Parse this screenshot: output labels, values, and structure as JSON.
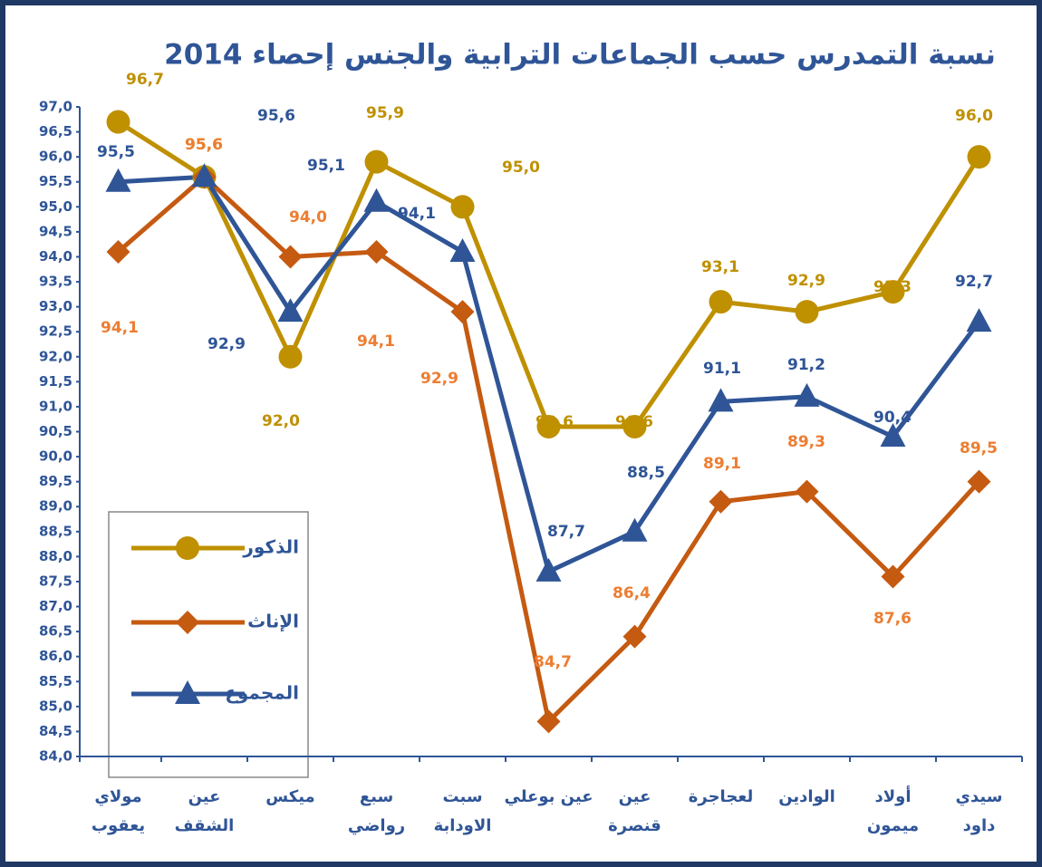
{
  "chart_data": {
    "type": "line",
    "title": "نسبة التمدرس حسب الجماعات الترابية والجنس إحصاء 2014",
    "categories": [
      "مولاي\nيعقوب",
      "عين\nالشقف",
      "ميكس",
      "سبع\nرواضي",
      "سبت\nالاودابة",
      "عين بوعلي",
      "عين\nقنصرة",
      "لعجاجرة",
      "الوادين",
      "أولاد\nميمون",
      "سيدي\nداود"
    ],
    "series": [
      {
        "name": "الذكور",
        "color": "#bf9000",
        "marker": "circle",
        "values": [
          96.7,
          95.6,
          92.0,
          95.9,
          95.0,
          90.6,
          90.6,
          93.1,
          92.9,
          93.3,
          96.0
        ],
        "value_labels": [
          "96,7",
          "95,6",
          "92,0",
          "95,9",
          "95,0",
          "90,6",
          "90,6",
          "93,1",
          "92,9",
          "93,3",
          "96,0"
        ]
      },
      {
        "name": "الإناث",
        "color": "#c55a11",
        "marker": "diamond",
        "values": [
          94.1,
          95.6,
          94.0,
          94.1,
          92.9,
          84.7,
          86.4,
          89.1,
          89.3,
          87.6,
          89.5
        ],
        "value_labels": [
          "94,1",
          "95,6",
          "94,0",
          "94,1",
          "92,9",
          "84,7",
          "86,4",
          "89,1",
          "89,3",
          "87,6",
          "89,5"
        ]
      },
      {
        "name": "المجموع",
        "color": "#2f5597",
        "marker": "triangle",
        "values": [
          95.5,
          95.6,
          92.9,
          95.1,
          94.1,
          87.7,
          88.5,
          91.1,
          91.2,
          90.4,
          92.7
        ],
        "value_labels": [
          "95,5",
          "95,6",
          "92,9",
          "95,1",
          "94,1",
          "87,7",
          "88,5",
          "91,1",
          "91,2",
          "90,4",
          "92,7"
        ]
      }
    ],
    "ylim": [
      84,
      97
    ],
    "yticks": [
      {
        "value": 84,
        "label": "84,0"
      },
      {
        "value": 84.5,
        "label": "84,5"
      },
      {
        "value": 85,
        "label": "85,0"
      },
      {
        "value": 85.5,
        "label": "85,5"
      },
      {
        "value": 86,
        "label": "86,0"
      },
      {
        "value": 86.5,
        "label": "86,5"
      },
      {
        "value": 87,
        "label": "87,0"
      },
      {
        "value": 87.5,
        "label": "87,5"
      },
      {
        "value": 88,
        "label": "88,0"
      },
      {
        "value": 88.5,
        "label": "88,5"
      },
      {
        "value": 89,
        "label": "89,0"
      },
      {
        "value": 89.5,
        "label": "89,5"
      },
      {
        "value": 90,
        "label": "90,0"
      },
      {
        "value": 90.5,
        "label": "90,5"
      },
      {
        "value": 91,
        "label": "91,0"
      },
      {
        "value": 91.5,
        "label": "91,5"
      },
      {
        "value": 92,
        "label": "92,0"
      },
      {
        "value": 92.5,
        "label": "92,5"
      },
      {
        "value": 93,
        "label": "93,0"
      },
      {
        "value": 93.5,
        "label": "93,5"
      },
      {
        "value": 94,
        "label": "94,0"
      },
      {
        "value": 94.5,
        "label": "94,5"
      },
      {
        "value": 95,
        "label": "95,0"
      },
      {
        "value": 95.5,
        "label": "95,5"
      },
      {
        "value": 96,
        "label": "96,0"
      },
      {
        "value": 96.5,
        "label": "96,5"
      },
      {
        "value": 97,
        "label": "97,0"
      }
    ],
    "grid": false,
    "legend": "lower left"
  }
}
